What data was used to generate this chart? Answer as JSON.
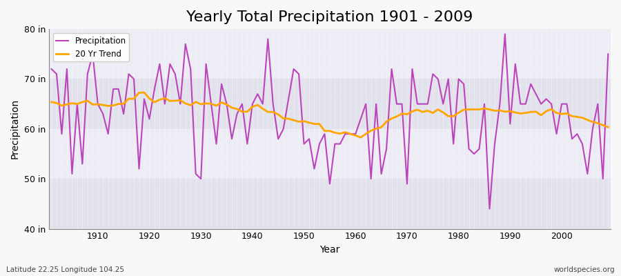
{
  "title": "Yearly Total Precipitation 1901 - 2009",
  "xlabel": "Year",
  "ylabel": "Precipitation",
  "subtitle_left": "Latitude 22.25 Longitude 104.25",
  "subtitle_right": "worldspecies.org",
  "years": [
    1901,
    1902,
    1903,
    1904,
    1905,
    1906,
    1907,
    1908,
    1909,
    1910,
    1911,
    1912,
    1913,
    1914,
    1915,
    1916,
    1917,
    1918,
    1919,
    1920,
    1921,
    1922,
    1923,
    1924,
    1925,
    1926,
    1927,
    1928,
    1929,
    1930,
    1931,
    1932,
    1933,
    1934,
    1935,
    1936,
    1937,
    1938,
    1939,
    1940,
    1941,
    1942,
    1943,
    1944,
    1945,
    1946,
    1947,
    1948,
    1949,
    1950,
    1951,
    1952,
    1953,
    1954,
    1955,
    1956,
    1957,
    1958,
    1959,
    1960,
    1961,
    1962,
    1963,
    1964,
    1965,
    1966,
    1967,
    1968,
    1969,
    1970,
    1971,
    1972,
    1973,
    1974,
    1975,
    1976,
    1977,
    1978,
    1979,
    1980,
    1981,
    1982,
    1983,
    1984,
    1985,
    1986,
    1987,
    1988,
    1989,
    1990,
    1991,
    1992,
    1993,
    1994,
    1995,
    1996,
    1997,
    1998,
    1999,
    2000,
    2001,
    2002,
    2003,
    2004,
    2005,
    2006,
    2007,
    2008,
    2009
  ],
  "precip": [
    72,
    71,
    59,
    72,
    51,
    65,
    53,
    71,
    75,
    65,
    63,
    59,
    68,
    68,
    63,
    71,
    70,
    52,
    66,
    62,
    68,
    73,
    65,
    73,
    71,
    65,
    77,
    72,
    51,
    50,
    73,
    65,
    57,
    69,
    65,
    58,
    63,
    65,
    57,
    65,
    67,
    65,
    78,
    65,
    58,
    60,
    66,
    72,
    71,
    57,
    58,
    52,
    57,
    59,
    49,
    57,
    57,
    59,
    59,
    59,
    62,
    65,
    50,
    65,
    51,
    56,
    72,
    65,
    65,
    49,
    72,
    65,
    65,
    65,
    71,
    70,
    65,
    70,
    57,
    70,
    69,
    56,
    55,
    56,
    65,
    44,
    57,
    65,
    79,
    61,
    73,
    65,
    65,
    69,
    67,
    65,
    66,
    65,
    59,
    65,
    65,
    58,
    59,
    57,
    51,
    60,
    65,
    50,
    75
  ],
  "precip_line_color": "#bb44bb",
  "trend_line_color": "#FFA500",
  "legend_precip": "Precipitation",
  "legend_trend": "20 Yr Trend",
  "ylim": [
    40,
    80
  ],
  "yticks": [
    40,
    50,
    60,
    70,
    80
  ],
  "ytick_labels": [
    "40 in",
    "50 in",
    "60 in",
    "70 in",
    "80 in"
  ],
  "bg_outer": "#f8f8f8",
  "bg_band_light": "#ececf4",
  "bg_band_dark": "#e2e2ec",
  "grid_color": "#ffffff",
  "title_fontsize": 16,
  "label_fontsize": 10,
  "tick_fontsize": 9
}
